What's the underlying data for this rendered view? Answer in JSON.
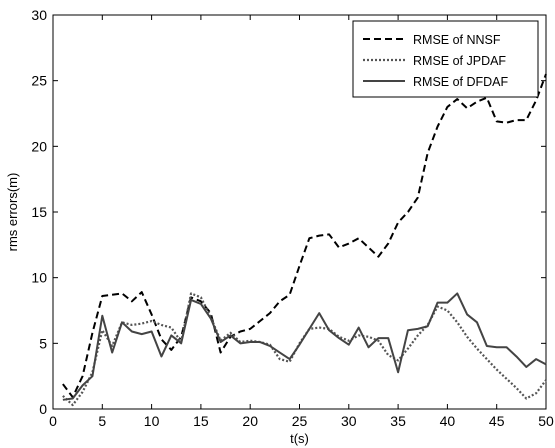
{
  "chart_data": {
    "type": "line",
    "title": "",
    "xlabel": "t(s)",
    "ylabel": "rms errors(m)",
    "xlim": [
      0,
      50
    ],
    "ylim": [
      0,
      30
    ],
    "xticks": [
      0,
      5,
      10,
      15,
      20,
      25,
      30,
      35,
      40,
      45,
      50
    ],
    "yticks": [
      0,
      5,
      10,
      15,
      20,
      25,
      30
    ],
    "grid": false,
    "legend_position": "top-right",
    "x": [
      1,
      2,
      3,
      4,
      5,
      6,
      7,
      8,
      9,
      10,
      11,
      12,
      13,
      14,
      15,
      16,
      17,
      18,
      19,
      20,
      21,
      22,
      23,
      24,
      25,
      26,
      27,
      28,
      29,
      30,
      31,
      32,
      33,
      34,
      35,
      36,
      37,
      38,
      39,
      40,
      41,
      42,
      43,
      44,
      45,
      46,
      47,
      48,
      49,
      50
    ],
    "series": [
      {
        "name": "RMSE of NNSF",
        "style": "dashed",
        "color": "#000000",
        "values": [
          1.9,
          0.9,
          2.5,
          5.8,
          8.6,
          8.7,
          8.8,
          8.2,
          8.9,
          7.2,
          5.3,
          4.5,
          5.5,
          8.5,
          8.2,
          7.3,
          4.3,
          5.5,
          5.9,
          6.1,
          6.7,
          7.3,
          8.2,
          8.7,
          10.9,
          13.0,
          13.2,
          13.3,
          12.3,
          12.6,
          13.0,
          12.3,
          11.6,
          12.6,
          14.2,
          15.0,
          16.1,
          19.5,
          21.5,
          23.0,
          23.6,
          22.9,
          23.4,
          23.7,
          21.9,
          21.8,
          22.0,
          22.0,
          23.5,
          25.5
        ]
      },
      {
        "name": "RMSE of JPDAF",
        "style": "dotted",
        "color": "#555555",
        "values": [
          1.0,
          0.3,
          1.3,
          2.8,
          6.0,
          4.8,
          6.6,
          6.4,
          6.5,
          6.7,
          6.4,
          6.2,
          5.1,
          8.8,
          8.5,
          7.0,
          5.2,
          5.8,
          5.1,
          5.2,
          5.1,
          4.9,
          3.8,
          3.6,
          5.0,
          6.1,
          6.2,
          6.1,
          5.5,
          5.2,
          5.6,
          5.5,
          5.2,
          4.1,
          3.7,
          4.6,
          5.6,
          6.4,
          7.8,
          7.5,
          6.6,
          5.5,
          4.6,
          3.8,
          3.0,
          2.3,
          1.6,
          0.8,
          1.2,
          2.2
        ]
      },
      {
        "name": "RMSE of DFDAF",
        "style": "solid",
        "color": "#444444",
        "values": [
          0.7,
          0.8,
          1.8,
          2.5,
          7.1,
          4.3,
          6.6,
          5.9,
          5.7,
          5.9,
          4.0,
          5.6,
          5.0,
          8.3,
          8.0,
          6.9,
          5.1,
          5.6,
          5.0,
          5.1,
          5.1,
          4.8,
          4.3,
          3.8,
          4.9,
          6.1,
          7.3,
          6.0,
          5.4,
          4.9,
          6.2,
          4.7,
          5.4,
          5.4,
          2.8,
          6.0,
          6.1,
          6.3,
          8.1,
          8.1,
          8.8,
          7.2,
          6.6,
          4.8,
          4.7,
          4.7,
          4.0,
          3.2,
          3.8,
          3.4
        ]
      }
    ]
  }
}
